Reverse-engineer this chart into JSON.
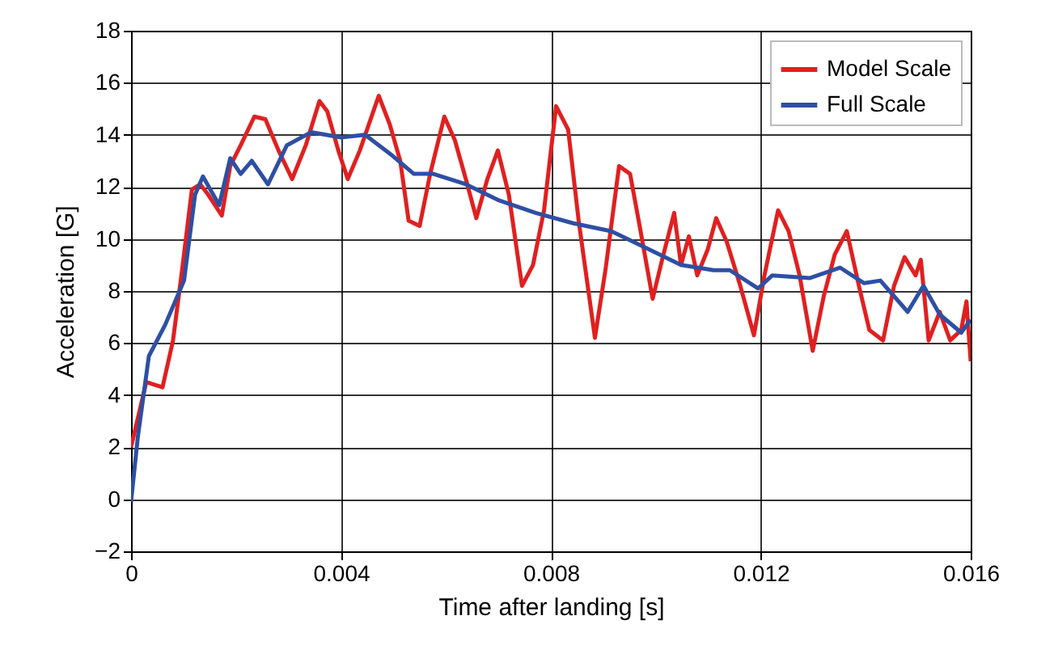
{
  "chart_data": {
    "type": "line",
    "xlabel": "Time after landing [s]",
    "ylabel": "Acceleration [G]",
    "xlim": [
      0,
      0.016
    ],
    "xticks": [
      0,
      0.004,
      0.008,
      0.012,
      0.016
    ],
    "ylim": [
      -2,
      18
    ],
    "yticks": [
      -2,
      0,
      2,
      4,
      6,
      8,
      10,
      12,
      14,
      16,
      18
    ],
    "grid": true,
    "legend": "top right",
    "marker": "none",
    "line_style": "solid",
    "series": [
      {
        "name": "Model Scale",
        "color": "#e02020",
        "x": [
          0,
          0.00029,
          0.0006,
          0.0008,
          0.00096,
          0.00116,
          0.00132,
          0.00147,
          0.00173,
          0.00189,
          0.00209,
          0.00235,
          0.00256,
          0.00281,
          0.00307,
          0.00333,
          0.00359,
          0.00374,
          0.00395,
          0.00413,
          0.00436,
          0.00472,
          0.00493,
          0.00513,
          0.00529,
          0.0055,
          0.0057,
          0.00597,
          0.00617,
          0.00638,
          0.00658,
          0.00679,
          0.00699,
          0.0072,
          0.00745,
          0.00766,
          0.00787,
          0.0081,
          0.00833,
          0.00853,
          0.00884,
          0.00904,
          0.0093,
          0.00951,
          0.00971,
          0.00994,
          0.01012,
          0.01035,
          0.01048,
          0.01063,
          0.01079,
          0.01099,
          0.01115,
          0.01135,
          0.01161,
          0.01187,
          0.01207,
          0.01233,
          0.01253,
          0.01274,
          0.01299,
          0.0132,
          0.01341,
          0.01364,
          0.01387,
          0.01407,
          0.01433,
          0.01454,
          0.01474,
          0.01495,
          0.01505,
          0.0152,
          0.01541,
          0.01561,
          0.01582,
          0.01592,
          0.016
        ],
        "values": [
          2.0,
          4.5,
          4.3,
          6.1,
          8.6,
          11.9,
          12.1,
          11.7,
          10.9,
          12.8,
          13.6,
          14.7,
          14.6,
          13.4,
          12.3,
          13.6,
          15.3,
          14.9,
          13.4,
          12.3,
          13.4,
          15.5,
          14.4,
          13.0,
          10.7,
          10.5,
          12.5,
          14.7,
          13.8,
          12.3,
          10.8,
          12.3,
          13.4,
          11.7,
          8.2,
          9.0,
          11.1,
          15.1,
          14.2,
          10.7,
          6.2,
          8.8,
          12.8,
          12.5,
          10.3,
          7.7,
          9.2,
          11.0,
          9.0,
          10.1,
          8.6,
          9.6,
          10.8,
          9.9,
          8.2,
          6.3,
          8.6,
          11.1,
          10.3,
          8.6,
          5.7,
          7.8,
          9.4,
          10.3,
          8.2,
          6.5,
          6.1,
          8.2,
          9.3,
          8.6,
          9.2,
          6.1,
          7.2,
          6.1,
          6.5,
          7.6,
          5.3
        ]
      },
      {
        "name": "Full Scale",
        "color": "#2e4fa3",
        "x": [
          0,
          0.00013,
          0.00034,
          0.00065,
          0.00101,
          0.00122,
          0.00137,
          0.00168,
          0.00189,
          0.00209,
          0.0023,
          0.00261,
          0.00297,
          0.00343,
          0.004,
          0.00446,
          0.00498,
          0.00539,
          0.00576,
          0.00638,
          0.00699,
          0.00771,
          0.00843,
          0.00915,
          0.00987,
          0.01048,
          0.0111,
          0.01141,
          0.01195,
          0.01222,
          0.01294,
          0.01351,
          0.01397,
          0.01428,
          0.0148,
          0.0151,
          0.01541,
          0.01582,
          0.016
        ],
        "values": [
          -0.1,
          2.4,
          5.5,
          6.7,
          8.4,
          11.7,
          12.4,
          11.3,
          13.1,
          12.5,
          13.0,
          12.1,
          13.6,
          14.1,
          13.9,
          14.0,
          13.2,
          12.5,
          12.5,
          12.1,
          11.5,
          11.0,
          10.6,
          10.3,
          9.6,
          9.0,
          8.8,
          8.8,
          8.1,
          8.6,
          8.5,
          8.9,
          8.3,
          8.4,
          7.2,
          8.2,
          7.1,
          6.4,
          6.9
        ]
      }
    ]
  }
}
